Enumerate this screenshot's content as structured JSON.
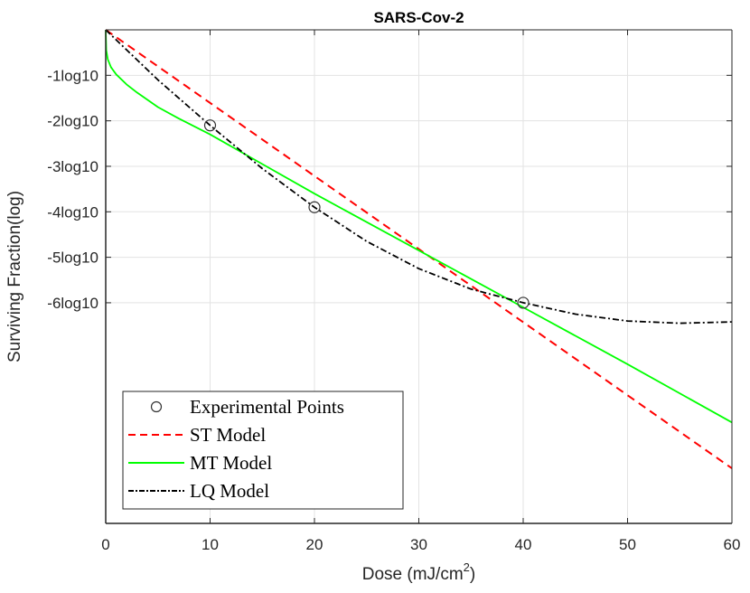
{
  "chart_data": {
    "type": "line",
    "title": "SARS-Cov-2",
    "xlabel": "Dose (mJ/cm",
    "xlabel_superscript": "2",
    "xlabel_suffix": ")",
    "ylabel": "Surviving Fraction(log)",
    "xlim": [
      0,
      60
    ],
    "ylim": [
      -10.85,
      0
    ],
    "grid": true,
    "x_ticks": [
      0,
      10,
      20,
      30,
      40,
      50,
      60
    ],
    "x_tick_labels": [
      "0",
      "10",
      "20",
      "30",
      "40",
      "50",
      "60"
    ],
    "y_ticks": [
      -1,
      -2,
      -3,
      -4,
      -5,
      -6
    ],
    "y_tick_labels": [
      "-1log10",
      "-2log10",
      "-3log10",
      "-4log10",
      "-5log10",
      "-6log10"
    ],
    "legend_position": "bottom-left",
    "series": [
      {
        "name": "Experimental Points",
        "style": "marker-circle",
        "color": "#000000",
        "x": [
          10,
          20,
          40
        ],
        "y": [
          -2.1,
          -3.9,
          -6.0
        ]
      },
      {
        "name": "ST Model",
        "style": "dashed",
        "color": "#ff0000",
        "x": [
          0,
          60
        ],
        "y": [
          0,
          -9.64
        ]
      },
      {
        "name": "MT Model",
        "style": "solid",
        "color": "#00ff00",
        "x": [
          0,
          0.05,
          0.2,
          0.5,
          1,
          2,
          3,
          5,
          7,
          10,
          15,
          20,
          30,
          40,
          50,
          60
        ],
        "y": [
          0,
          -0.45,
          -0.65,
          -0.82,
          -0.98,
          -1.2,
          -1.38,
          -1.7,
          -1.95,
          -2.3,
          -2.95,
          -3.6,
          -4.85,
          -6.1,
          -7.35,
          -8.63
        ]
      },
      {
        "name": "LQ Model",
        "style": "dashdot",
        "color": "#000000",
        "x": [
          0,
          5,
          10,
          15,
          20,
          25,
          30,
          35,
          40,
          45,
          50,
          55,
          60
        ],
        "y": [
          0,
          -1.1,
          -2.1,
          -3.05,
          -3.9,
          -4.65,
          -5.25,
          -5.7,
          -6.0,
          -6.25,
          -6.4,
          -6.45,
          -6.42
        ]
      }
    ]
  }
}
